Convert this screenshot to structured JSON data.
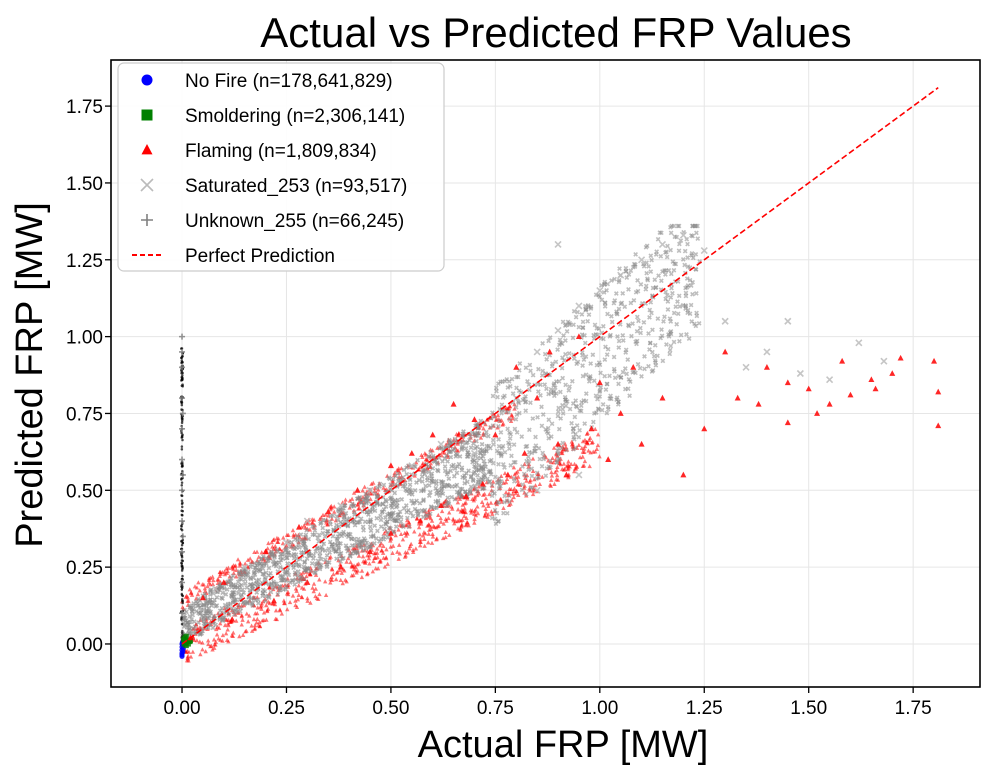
{
  "chart_data": {
    "type": "scatter",
    "title": "Actual vs Predicted  FRP Values",
    "xlabel": "Actual FRP [MW]",
    "ylabel": "Predicted FRP [MW]",
    "xlim": [
      -0.17,
      1.91
    ],
    "ylim": [
      -0.14,
      1.9
    ],
    "x_ticks": [
      0.0,
      0.25,
      0.5,
      0.75,
      1.0,
      1.25,
      1.5,
      1.75
    ],
    "x_tick_labels": [
      "0.00",
      "0.25",
      "0.50",
      "0.75",
      "1.00",
      "1.25",
      "1.50",
      "1.75"
    ],
    "y_ticks": [
      0.0,
      0.25,
      0.5,
      0.75,
      1.0,
      1.25,
      1.5,
      1.75
    ],
    "y_tick_labels": [
      "0.00",
      "0.25",
      "0.50",
      "0.75",
      "1.00",
      "1.25",
      "1.50",
      "1.75"
    ],
    "grid": true,
    "legend_position": "top-left",
    "series": [
      {
        "name": "No Fire (n=178,641,829)",
        "marker": "circle",
        "color": "#0000ff",
        "points": [
          [
            0.0,
            -0.04
          ],
          [
            0.0,
            -0.035
          ],
          [
            0.0,
            -0.03
          ],
          [
            0.002,
            -0.025
          ],
          [
            0.0,
            -0.02
          ],
          [
            0.003,
            -0.015
          ],
          [
            0.0,
            -0.01
          ],
          [
            0.002,
            -0.005
          ],
          [
            0.0,
            0.0
          ],
          [
            0.001,
            0.005
          ]
        ]
      },
      {
        "name": "Smoldering (n=2,306,141)",
        "marker": "square",
        "color": "#008000",
        "points": [
          [
            0.005,
            0.0
          ],
          [
            0.008,
            0.005
          ],
          [
            0.01,
            -0.005
          ],
          [
            0.012,
            0.01
          ],
          [
            0.004,
            0.015
          ],
          [
            0.015,
            0.0
          ],
          [
            0.018,
            0.008
          ],
          [
            0.007,
            0.02
          ],
          [
            0.01,
            0.025
          ],
          [
            0.02,
            0.01
          ]
        ]
      },
      {
        "name": "Flaming (n=1,809,834)",
        "marker": "triangle",
        "color": "#ff0000",
        "points": [
          [
            0.02,
            0.02
          ],
          [
            0.05,
            0.15
          ],
          [
            0.1,
            0.2
          ],
          [
            0.12,
            0.08
          ],
          [
            0.2,
            0.3
          ],
          [
            0.22,
            0.14
          ],
          [
            0.28,
            0.38
          ],
          [
            0.3,
            0.2
          ],
          [
            0.35,
            0.43
          ],
          [
            0.38,
            0.25
          ],
          [
            0.42,
            0.5
          ],
          [
            0.45,
            0.3
          ],
          [
            0.5,
            0.58
          ],
          [
            0.5,
            0.36
          ],
          [
            0.55,
            0.62
          ],
          [
            0.57,
            0.4
          ],
          [
            0.6,
            0.68
          ],
          [
            0.62,
            0.45
          ],
          [
            0.65,
            0.78
          ],
          [
            0.68,
            0.48
          ],
          [
            0.7,
            0.73
          ],
          [
            0.72,
            0.52
          ],
          [
            0.75,
            0.68
          ],
          [
            0.78,
            0.55
          ],
          [
            0.8,
            0.9
          ],
          [
            0.82,
            0.62
          ],
          [
            0.85,
            0.8
          ],
          [
            0.88,
            0.95
          ],
          [
            0.9,
            0.65
          ],
          [
            0.92,
            0.55
          ],
          [
            0.95,
            1.0
          ],
          [
            0.98,
            0.7
          ],
          [
            1.0,
            0.85
          ],
          [
            1.02,
            0.6
          ],
          [
            1.05,
            0.75
          ],
          [
            1.08,
            0.9
          ],
          [
            1.1,
            0.65
          ],
          [
            1.15,
            0.8
          ],
          [
            1.2,
            0.55
          ],
          [
            1.25,
            0.7
          ],
          [
            1.3,
            0.95
          ],
          [
            1.33,
            0.8
          ],
          [
            1.4,
            0.9
          ],
          [
            1.45,
            0.85
          ],
          [
            1.5,
            0.83
          ],
          [
            1.55,
            0.78
          ],
          [
            1.6,
            0.81
          ],
          [
            1.65,
            0.86
          ],
          [
            1.7,
            0.88
          ],
          [
            1.72,
            0.93
          ],
          [
            1.8,
            0.92
          ],
          [
            1.81,
            0.82
          ],
          [
            1.81,
            0.71
          ],
          [
            1.66,
            0.83
          ],
          [
            1.58,
            0.92
          ],
          [
            1.52,
            0.75
          ],
          [
            1.45,
            0.72
          ],
          [
            1.38,
            0.78
          ]
        ]
      },
      {
        "name": "Saturated_253 (n=93,517)",
        "marker": "x",
        "color": "#bbbbbb",
        "points": [
          [
            0.08,
            0.18
          ],
          [
            0.15,
            0.25
          ],
          [
            0.25,
            0.33
          ],
          [
            0.3,
            0.4
          ],
          [
            0.38,
            0.45
          ],
          [
            0.45,
            0.5
          ],
          [
            0.55,
            0.58
          ],
          [
            0.62,
            0.65
          ],
          [
            0.7,
            0.62
          ],
          [
            0.8,
            0.8
          ],
          [
            0.85,
            0.95
          ],
          [
            0.9,
            1.02
          ],
          [
            0.95,
            1.1
          ],
          [
            1.0,
            1.15
          ],
          [
            1.05,
            1.2
          ],
          [
            1.1,
            1.25
          ],
          [
            1.15,
            1.3
          ],
          [
            1.2,
            1.33
          ],
          [
            1.25,
            1.28
          ],
          [
            1.3,
            1.05
          ],
          [
            1.35,
            0.9
          ],
          [
            1.4,
            0.95
          ],
          [
            1.48,
            0.88
          ],
          [
            1.55,
            0.86
          ],
          [
            1.62,
            0.98
          ],
          [
            1.68,
            0.92
          ],
          [
            1.45,
            1.05
          ],
          [
            0.9,
            1.3
          ],
          [
            0.85,
            0.5
          ],
          [
            0.95,
            0.55
          ]
        ]
      },
      {
        "name": "Unknown_255 (n=66,245)",
        "marker": "plus",
        "color": "#808080",
        "points": [
          [
            0.0,
            0.1
          ],
          [
            0.0,
            0.2
          ],
          [
            0.0,
            0.3
          ],
          [
            0.0,
            0.4
          ],
          [
            0.0,
            0.5
          ],
          [
            0.0,
            0.6
          ],
          [
            0.0,
            0.7
          ],
          [
            0.0,
            0.8
          ],
          [
            0.0,
            0.9
          ],
          [
            0.0,
            0.95
          ],
          [
            0.0,
            1.0
          ],
          [
            0.002,
            0.35
          ],
          [
            0.002,
            0.55
          ],
          [
            0.002,
            0.75
          ]
        ]
      }
    ],
    "bands": [
      {
        "name": "flaming-band",
        "color": "#ff0000",
        "x_range": [
          0.0,
          1.0
        ],
        "spread": 0.06
      },
      {
        "name": "saturated-band",
        "color": "#888888",
        "x_range": [
          0.0,
          1.25
        ],
        "spread": 0.08
      }
    ],
    "reference_line": {
      "name": "Perfect Prediction",
      "color": "#ff0000",
      "style": "dashed",
      "from": [
        0.0,
        0.0
      ],
      "to": [
        1.81,
        1.81
      ]
    }
  }
}
